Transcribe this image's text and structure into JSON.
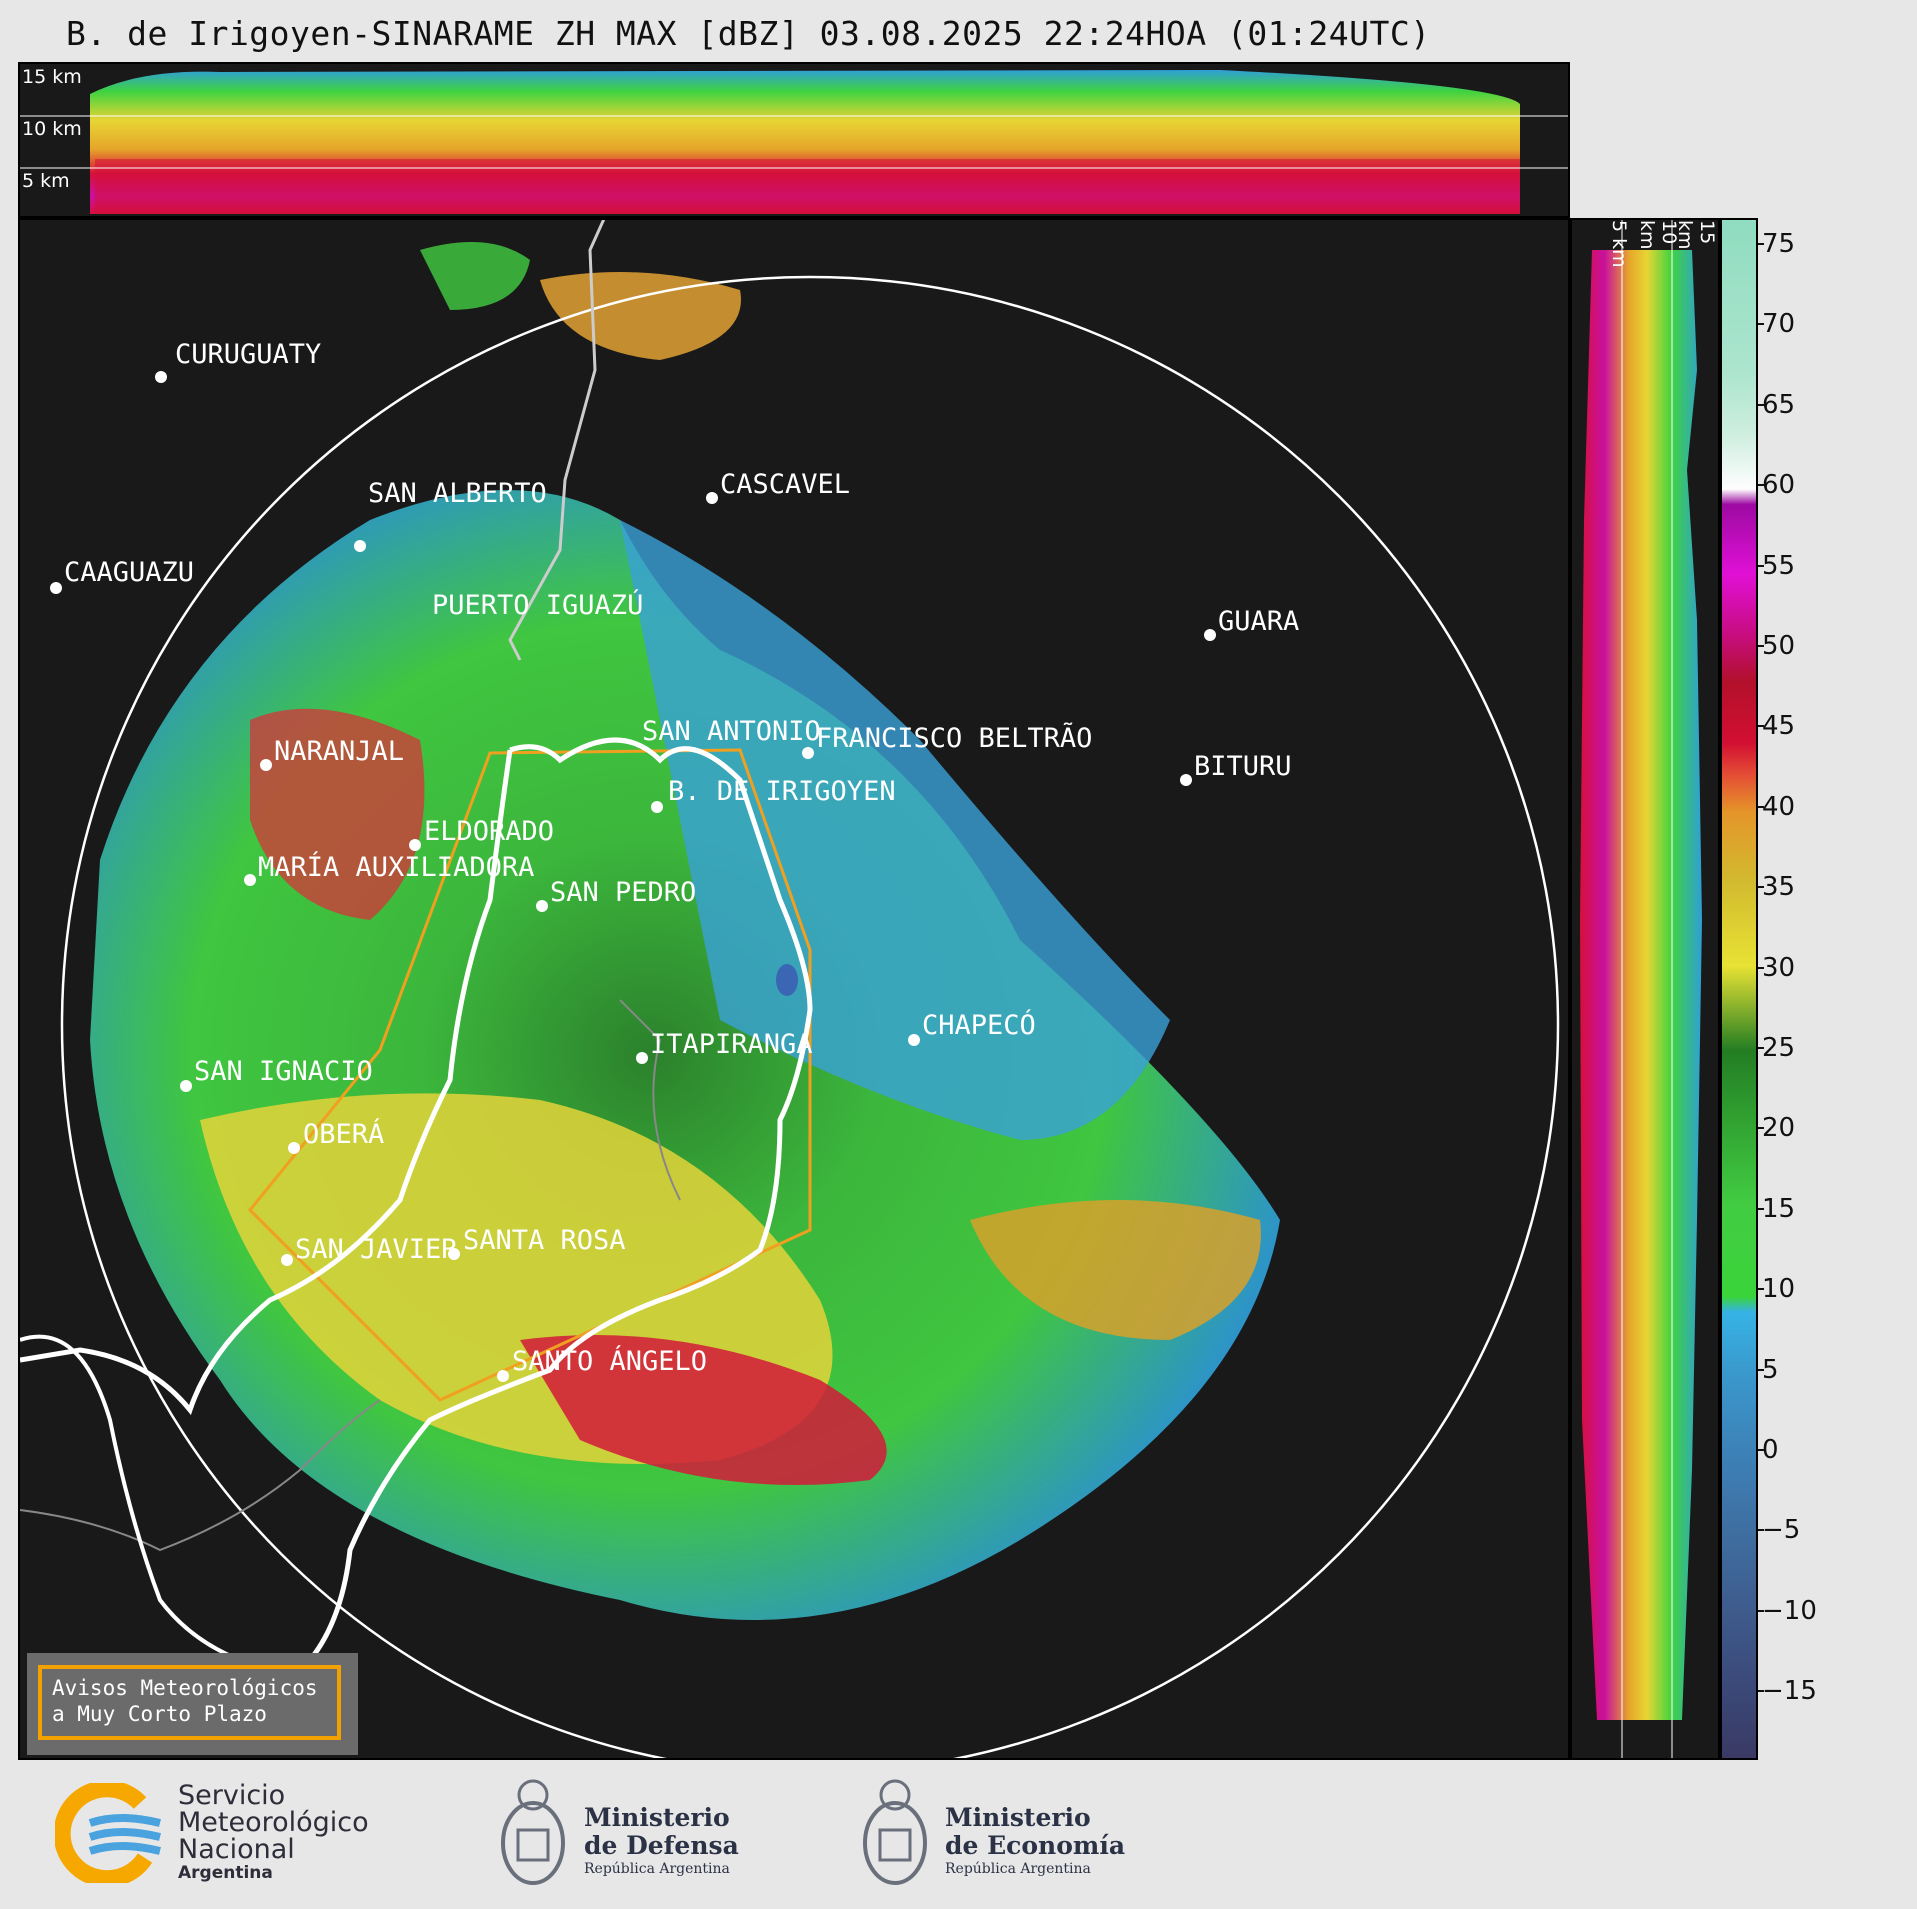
{
  "title": "B. de Irigoyen-SINARAME ZH MAX [dBZ] 03.08.2025 22:24HOA (01:24UTC)",
  "top_panel": {
    "km_labels": [
      "15 km",
      "10 km",
      "5 km"
    ]
  },
  "side_panel": {
    "km_labels": [
      "5 km",
      "10 km",
      "15 km"
    ]
  },
  "colorbar": {
    "unit": "dBZ",
    "ticks": [
      "75",
      "70",
      "65",
      "60",
      "55",
      "50",
      "45",
      "40",
      "35",
      "30",
      "25",
      "20",
      "15",
      "10",
      "5",
      "0",
      "−5",
      "−10",
      "−15"
    ]
  },
  "cities": [
    {
      "name": "CURUGUATY"
    },
    {
      "name": "SAN ALBERTO"
    },
    {
      "name": "CASCAVEL"
    },
    {
      "name": "CAAGUAZU"
    },
    {
      "name": "GUARA"
    },
    {
      "name": "PUERTO IGUAZÚ"
    },
    {
      "name": "NARANJAL"
    },
    {
      "name": "SAN ANTONIO"
    },
    {
      "name": "FRANCISCO BELTRÃO"
    },
    {
      "name": "B. DE IRIGOYEN"
    },
    {
      "name": "BITURU"
    },
    {
      "name": "ELDORADO"
    },
    {
      "name": "MARÍA AUXILIADORA"
    },
    {
      "name": "SAN PEDRO"
    },
    {
      "name": "ITAPIRANGA"
    },
    {
      "name": "CHAPECÓ"
    },
    {
      "name": "SAN IGNACIO"
    },
    {
      "name": "OBERÁ"
    },
    {
      "name": "SAN JAVIER"
    },
    {
      "name": "SANTA ROSA"
    },
    {
      "name": "SANTO ÁNGELO"
    }
  ],
  "warning_box": {
    "line1": "Avisos Meteorológicos",
    "line2": "a Muy Corto Plazo"
  },
  "footer": {
    "smn": {
      "line1": "Servicio",
      "line2": "Meteorológico",
      "line3": "Nacional",
      "line4": "Argentina"
    },
    "defensa": {
      "line1": "Ministerio",
      "line2": "de Defensa",
      "line3": "República Argentina"
    },
    "economia": {
      "line1": "Ministerio",
      "line2": "de Economía",
      "line3": "República Argentina"
    }
  },
  "colors": {
    "panel_bg": "#191919",
    "warning_border": "#f3a100",
    "border_line": "#ffffff",
    "zone_line": "#f0a020"
  }
}
